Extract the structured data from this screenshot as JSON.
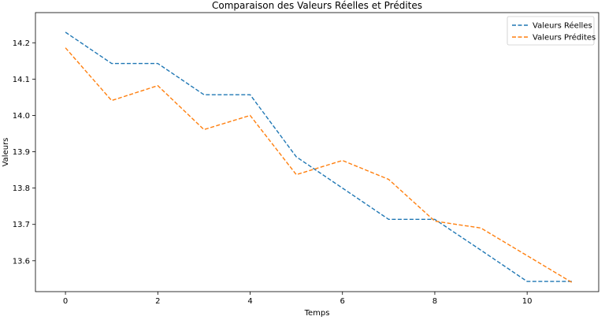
{
  "chart_data": {
    "type": "line",
    "title": "Comparaison des Valeurs Réelles et Prédites",
    "xlabel": "Temps",
    "ylabel": "Valeurs",
    "xlim": [
      -0.65,
      11.55
    ],
    "ylim": [
      13.515,
      14.283
    ],
    "xticks": [
      0,
      2,
      4,
      6,
      8,
      10
    ],
    "yticks": [
      13.6,
      13.7,
      13.8,
      13.9,
      14.0,
      14.1,
      14.2
    ],
    "grid": false,
    "legend_position": "top-right",
    "x": [
      0,
      1,
      2,
      3,
      4,
      5,
      6,
      7,
      8,
      9,
      10,
      11
    ],
    "series": [
      {
        "name": "Valeurs Réelles",
        "color": "#1f77b4",
        "style": "dashed",
        "values": [
          14.229,
          14.143,
          14.143,
          14.057,
          14.057,
          13.886,
          13.8,
          13.714,
          13.714,
          13.629,
          13.543,
          13.543
        ]
      },
      {
        "name": "Valeurs Prédites",
        "color": "#ff7f0e",
        "style": "dashed",
        "values": [
          14.186,
          14.041,
          14.082,
          13.961,
          14.0,
          13.837,
          13.876,
          13.824,
          13.709,
          13.69,
          13.614,
          13.538
        ]
      }
    ]
  }
}
